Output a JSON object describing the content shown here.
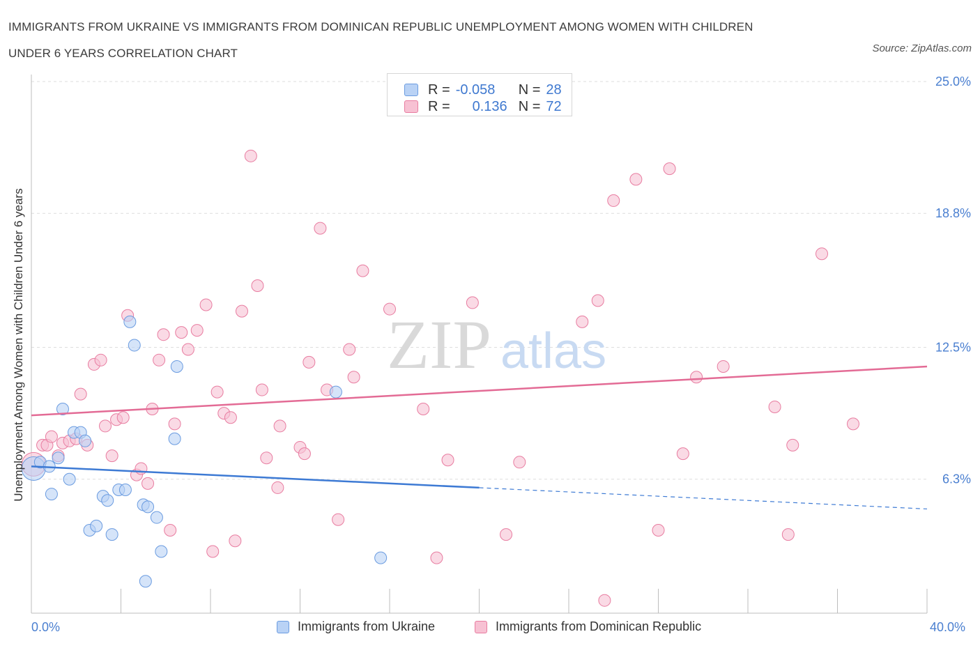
{
  "title_line1": "IMMIGRANTS FROM UKRAINE VS IMMIGRANTS FROM DOMINICAN REPUBLIC UNEMPLOYMENT AMONG WOMEN WITH CHILDREN",
  "title_line2": "UNDER 6 YEARS CORRELATION CHART",
  "source": "Source: ZipAtlas.com",
  "watermark": {
    "zip": "ZIP",
    "atlas": "atlas"
  },
  "stats": {
    "r_label": "R =",
    "n_label": "N =",
    "ukraine": {
      "r": "-0.058",
      "n": "28"
    },
    "dominican": {
      "r": "0.136",
      "n": "72"
    }
  },
  "legend": {
    "ukraine": "Immigrants from Ukraine",
    "dominican": "Immigrants from Dominican Republic"
  },
  "chart_data": {
    "type": "scatter",
    "title": "IMMIGRANTS FROM UKRAINE VS IMMIGRANTS FROM DOMINICAN REPUBLIC UNEMPLOYMENT AMONG WOMEN WITH CHILDREN UNDER 6 YEARS CORRELATION CHART",
    "xlabel": "",
    "ylabel": "Unemployment Among Women with Children Under 6 years",
    "xlim": [
      0,
      40
    ],
    "ylim": [
      0,
      25
    ],
    "x_tick_labels": [
      "0.0%",
      "40.0%"
    ],
    "y_ticks": [
      6.3,
      12.5,
      18.8,
      25.0
    ],
    "y_tick_labels": [
      "6.3%",
      "12.5%",
      "18.8%",
      "25.0%"
    ],
    "grid": true,
    "legend_position": "bottom",
    "colors": {
      "ukraine": "#6a9be0",
      "ukraine_fill": "#b9d2f5",
      "dominican": "#e87ca0",
      "dominican_fill": "#f7c1d3",
      "axis_label": "#4a7fd0"
    },
    "series": [
      {
        "name": "Immigrants from Ukraine",
        "r": -0.058,
        "n": 28,
        "trend": {
          "x0": 0,
          "y0": 6.9,
          "x1": 20,
          "y1": 5.9,
          "dashed_to_x": 40,
          "dashed_to_y": 4.9
        },
        "points": [
          {
            "x": 0.1,
            "y": 6.8,
            "size": "large"
          },
          {
            "x": 0.4,
            "y": 7.1
          },
          {
            "x": 0.8,
            "y": 6.9
          },
          {
            "x": 0.9,
            "y": 5.6
          },
          {
            "x": 1.2,
            "y": 7.3
          },
          {
            "x": 1.4,
            "y": 9.6
          },
          {
            "x": 1.7,
            "y": 6.3
          },
          {
            "x": 1.9,
            "y": 8.5
          },
          {
            "x": 2.2,
            "y": 8.5
          },
          {
            "x": 2.4,
            "y": 8.1
          },
          {
            "x": 2.6,
            "y": 3.9
          },
          {
            "x": 2.9,
            "y": 4.1
          },
          {
            "x": 3.2,
            "y": 5.5
          },
          {
            "x": 3.4,
            "y": 5.3
          },
          {
            "x": 3.6,
            "y": 3.7
          },
          {
            "x": 3.9,
            "y": 5.8
          },
          {
            "x": 4.2,
            "y": 5.8
          },
          {
            "x": 4.4,
            "y": 13.7
          },
          {
            "x": 4.6,
            "y": 12.6
          },
          {
            "x": 5.0,
            "y": 5.1
          },
          {
            "x": 5.2,
            "y": 5.0
          },
          {
            "x": 5.1,
            "y": 1.5
          },
          {
            "x": 5.6,
            "y": 4.5
          },
          {
            "x": 5.8,
            "y": 2.9
          },
          {
            "x": 6.4,
            "y": 8.2
          },
          {
            "x": 6.5,
            "y": 11.6
          },
          {
            "x": 13.6,
            "y": 10.4
          },
          {
            "x": 15.6,
            "y": 2.6
          }
        ]
      },
      {
        "name": "Immigrants from Dominican Republic",
        "r": 0.136,
        "n": 72,
        "trend": {
          "x0": 0,
          "y0": 9.3,
          "x1": 40,
          "y1": 11.6
        },
        "points": [
          {
            "x": 0.1,
            "y": 7.0,
            "size": "large"
          },
          {
            "x": 0.5,
            "y": 7.9
          },
          {
            "x": 0.7,
            "y": 7.9
          },
          {
            "x": 0.9,
            "y": 8.3
          },
          {
            "x": 1.2,
            "y": 7.4
          },
          {
            "x": 1.4,
            "y": 8.0
          },
          {
            "x": 1.7,
            "y": 8.1
          },
          {
            "x": 2.0,
            "y": 8.2
          },
          {
            "x": 2.2,
            "y": 10.3
          },
          {
            "x": 2.5,
            "y": 7.9
          },
          {
            "x": 2.8,
            "y": 11.7
          },
          {
            "x": 3.1,
            "y": 11.9
          },
          {
            "x": 3.3,
            "y": 8.8
          },
          {
            "x": 3.6,
            "y": 7.4
          },
          {
            "x": 3.8,
            "y": 9.1
          },
          {
            "x": 4.1,
            "y": 9.2
          },
          {
            "x": 4.3,
            "y": 14.0
          },
          {
            "x": 4.7,
            "y": 6.5
          },
          {
            "x": 4.9,
            "y": 6.8
          },
          {
            "x": 5.2,
            "y": 6.1
          },
          {
            "x": 5.4,
            "y": 9.6
          },
          {
            "x": 5.7,
            "y": 11.9
          },
          {
            "x": 5.9,
            "y": 13.1
          },
          {
            "x": 6.2,
            "y": 3.9
          },
          {
            "x": 6.4,
            "y": 8.9
          },
          {
            "x": 6.7,
            "y": 13.2
          },
          {
            "x": 7.0,
            "y": 12.4
          },
          {
            "x": 7.4,
            "y": 13.3
          },
          {
            "x": 7.8,
            "y": 14.5
          },
          {
            "x": 8.1,
            "y": 2.9
          },
          {
            "x": 8.3,
            "y": 10.4
          },
          {
            "x": 8.6,
            "y": 9.4
          },
          {
            "x": 8.9,
            "y": 9.2
          },
          {
            "x": 9.1,
            "y": 3.4
          },
          {
            "x": 9.4,
            "y": 14.2
          },
          {
            "x": 9.8,
            "y": 21.5
          },
          {
            "x": 10.1,
            "y": 15.4
          },
          {
            "x": 10.3,
            "y": 10.5
          },
          {
            "x": 10.5,
            "y": 7.3
          },
          {
            "x": 11.0,
            "y": 5.9
          },
          {
            "x": 11.1,
            "y": 8.8
          },
          {
            "x": 12.0,
            "y": 7.8
          },
          {
            "x": 12.2,
            "y": 7.5
          },
          {
            "x": 12.4,
            "y": 11.8
          },
          {
            "x": 12.9,
            "y": 18.1
          },
          {
            "x": 13.2,
            "y": 10.5
          },
          {
            "x": 13.7,
            "y": 4.4
          },
          {
            "x": 14.2,
            "y": 12.4
          },
          {
            "x": 14.4,
            "y": 11.1
          },
          {
            "x": 14.8,
            "y": 16.1
          },
          {
            "x": 16.0,
            "y": 14.3
          },
          {
            "x": 17.5,
            "y": 9.6
          },
          {
            "x": 18.1,
            "y": 2.6
          },
          {
            "x": 18.6,
            "y": 7.2
          },
          {
            "x": 19.7,
            "y": 14.6
          },
          {
            "x": 21.2,
            "y": 3.7
          },
          {
            "x": 21.8,
            "y": 7.1
          },
          {
            "x": 24.6,
            "y": 13.7
          },
          {
            "x": 25.3,
            "y": 14.7
          },
          {
            "x": 25.6,
            "y": 0.6
          },
          {
            "x": 26.0,
            "y": 19.4
          },
          {
            "x": 27.0,
            "y": 20.4
          },
          {
            "x": 28.0,
            "y": 3.9
          },
          {
            "x": 28.5,
            "y": 20.9
          },
          {
            "x": 29.1,
            "y": 7.5
          },
          {
            "x": 29.7,
            "y": 11.1
          },
          {
            "x": 30.9,
            "y": 11.6
          },
          {
            "x": 33.2,
            "y": 9.7
          },
          {
            "x": 33.8,
            "y": 3.7
          },
          {
            "x": 34.0,
            "y": 7.9
          },
          {
            "x": 35.3,
            "y": 16.9
          },
          {
            "x": 36.7,
            "y": 8.9
          }
        ]
      }
    ]
  }
}
